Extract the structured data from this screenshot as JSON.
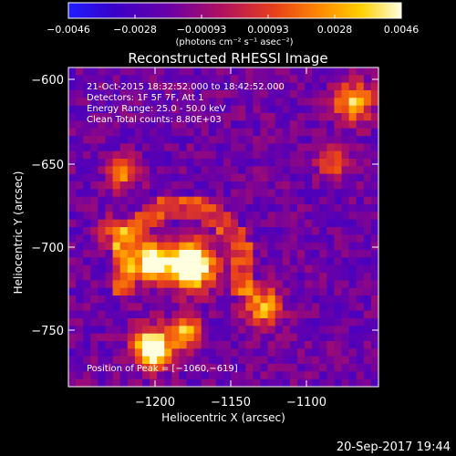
{
  "colorbar": {
    "tick_labels": [
      "−0.0046",
      "−0.0028",
      "−0.00093",
      "0.00093",
      "0.0028",
      "0.0046"
    ],
    "units_label": "(photons cm⁻² s⁻¹ asec⁻²)",
    "colors": [
      "#1e1eff",
      "#3a00c8",
      "#6a00a8",
      "#b01060",
      "#e8401a",
      "#ff8c00",
      "#ffd000",
      "#ffffe0"
    ]
  },
  "plot": {
    "title": "Reconstructed RHESSI Image",
    "xlabel": "Heliocentric X (arcsec)",
    "ylabel": "Heliocentric Y (arcsec)",
    "x_tick_labels": [
      "−1200",
      "−1150",
      "−1100"
    ],
    "y_tick_labels": [
      "−600",
      "−650",
      "−700",
      "−750"
    ],
    "info_lines": [
      "21-Oct-2015 18:32:52.000 to 18:42:52.000",
      "Detectors: 1F 5F 7F, Att 1",
      "Energy Range: 25.0 - 50.0 keV",
      "Clean    Total counts: 8.80E+03"
    ],
    "peak_label": "Position of Peak = [−1060,−619]"
  },
  "footer": {
    "timestamp": "20-Sep-2017 19:44"
  }
}
